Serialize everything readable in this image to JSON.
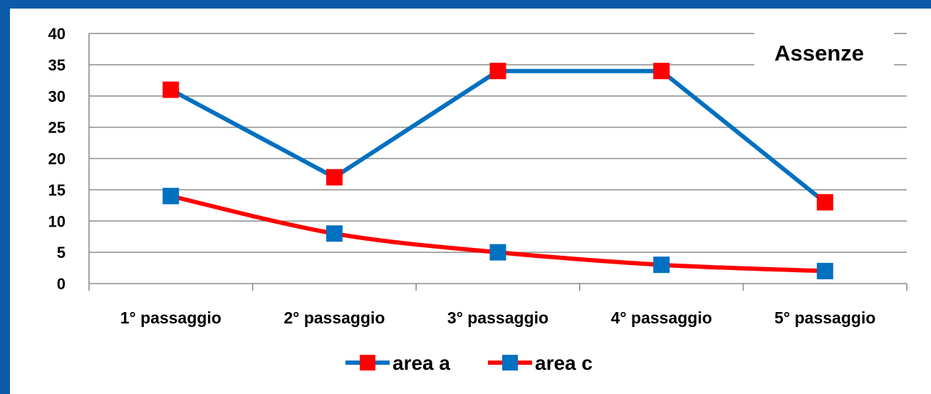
{
  "chart_data": {
    "type": "line",
    "title": "Assenze",
    "categories": [
      "1° passaggio",
      "2° passaggio",
      "3° passaggio",
      "4° passaggio",
      "5° passaggio"
    ],
    "series": [
      {
        "name": "area a",
        "line_color": "#0070c0",
        "marker_color": "#ff0000",
        "values": [
          31,
          17,
          34,
          34,
          13
        ]
      },
      {
        "name": "area c",
        "line_color": "#ff0000",
        "marker_color": "#0070c0",
        "values": [
          14,
          8,
          5,
          3,
          2
        ]
      }
    ],
    "ylim": [
      0,
      40
    ],
    "yticks": [
      0,
      5,
      10,
      15,
      20,
      25,
      30,
      35,
      40
    ],
    "grid": true,
    "legend_position": "bottom",
    "xlabel": "",
    "ylabel": ""
  }
}
